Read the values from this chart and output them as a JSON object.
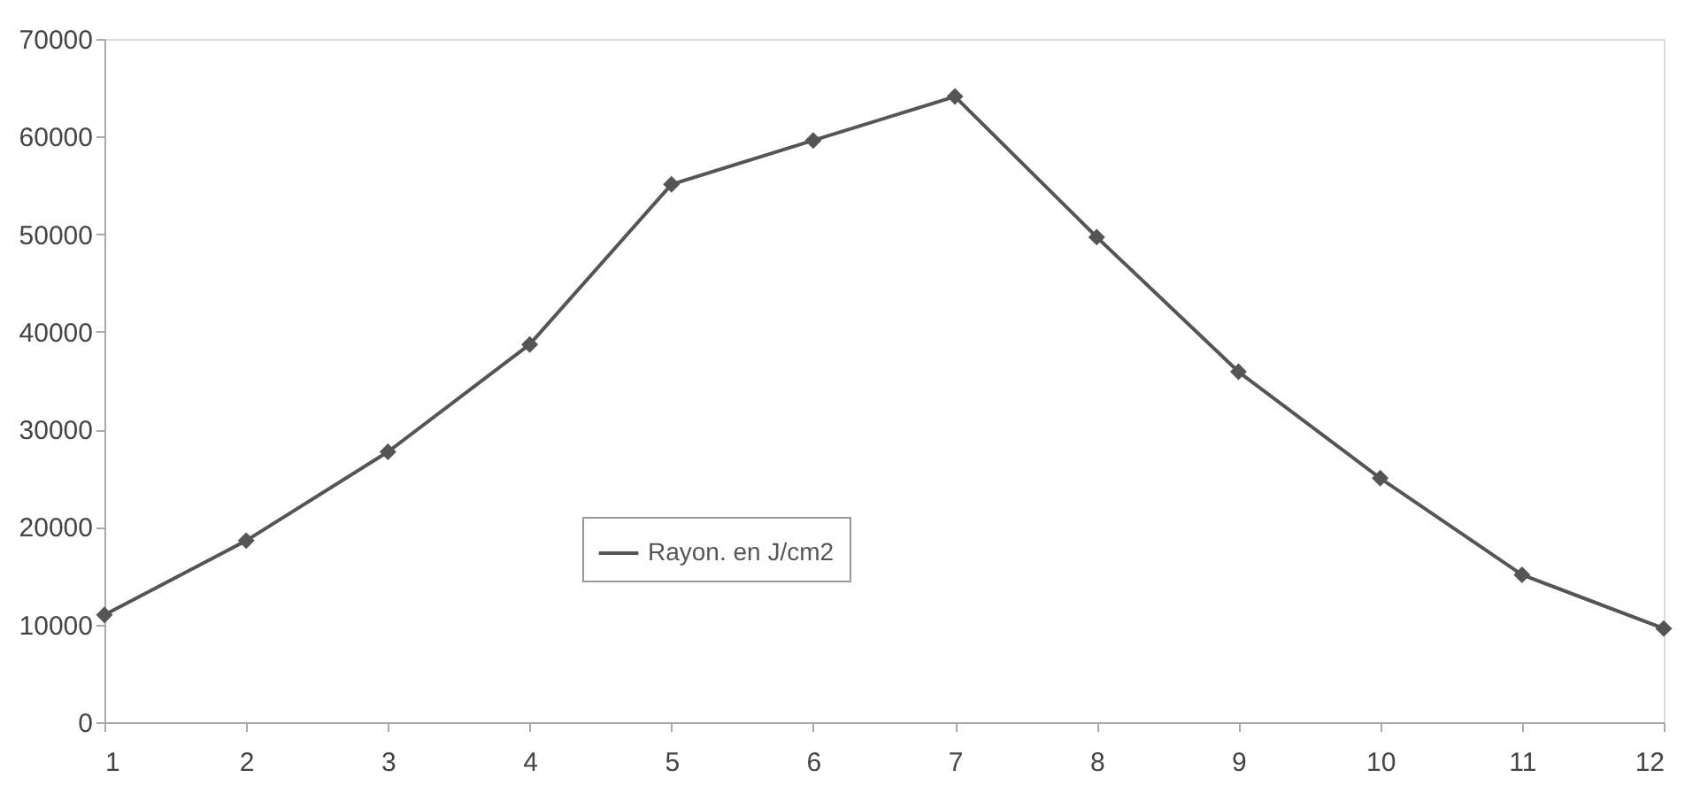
{
  "chart_data": {
    "type": "line",
    "x": [
      1,
      2,
      3,
      4,
      5,
      6,
      7,
      8,
      9,
      10,
      11,
      12
    ],
    "series": [
      {
        "name": "Rayon. en J/cm2",
        "color": "#555555",
        "values": [
          11000,
          18600,
          27700,
          38700,
          55100,
          59600,
          64100,
          49700,
          35900,
          25000,
          15100,
          9600
        ]
      }
    ],
    "xlim": [
      1,
      12
    ],
    "xticks": [
      1,
      2,
      3,
      4,
      5,
      6,
      7,
      8,
      9,
      10,
      11,
      12
    ],
    "ylim": [
      0,
      70000
    ],
    "yticks": [
      0,
      10000,
      20000,
      30000,
      40000,
      50000,
      60000,
      70000
    ],
    "grid": false,
    "legend": "center left",
    "marker": "diamond",
    "line_style": "solid"
  }
}
